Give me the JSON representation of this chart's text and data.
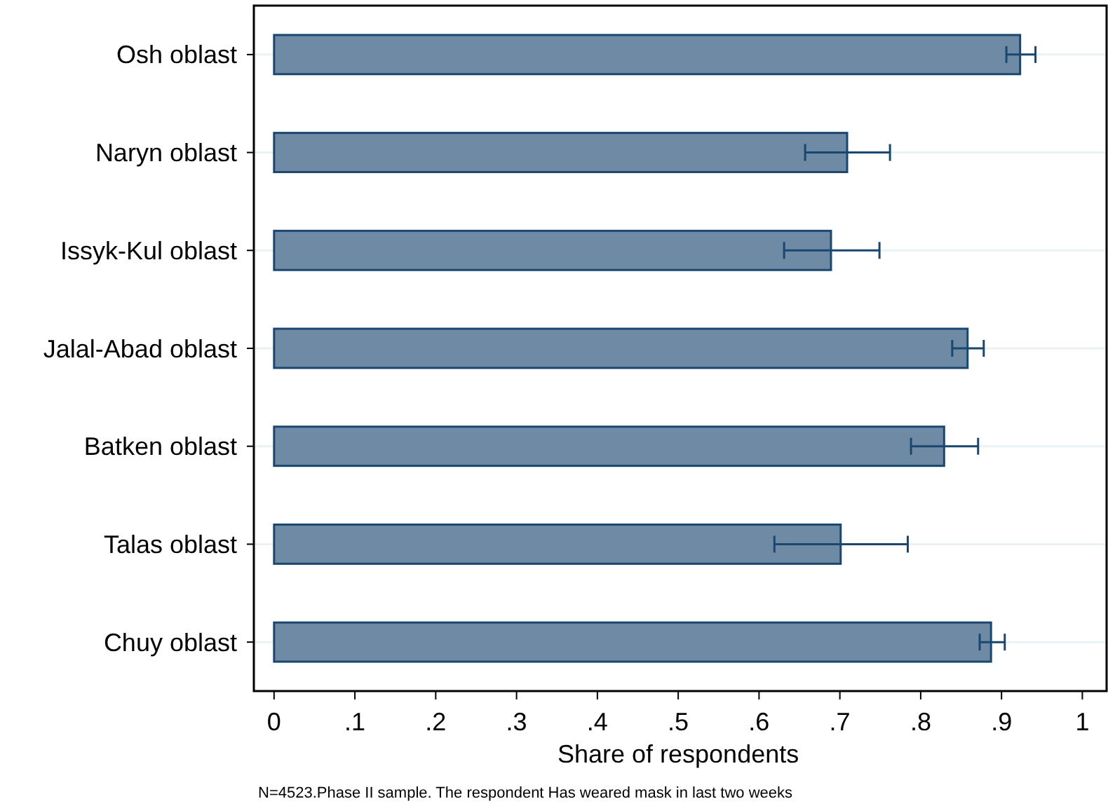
{
  "chart_data": {
    "type": "bar",
    "orientation": "horizontal",
    "xlabel": "Share of respondents",
    "categories": [
      "Osh oblast",
      "Naryn oblast",
      "Issyk-Kul oblast",
      "Jalal-Abad oblast",
      "Batken oblast",
      "Talas oblast",
      "Chuy oblast"
    ],
    "values": [
      0.923,
      0.709,
      0.689,
      0.858,
      0.829,
      0.701,
      0.887
    ],
    "errors": [
      [
        0.906,
        0.942
      ],
      [
        0.657,
        0.762
      ],
      [
        0.631,
        0.749
      ],
      [
        0.839,
        0.878
      ],
      [
        0.788,
        0.871
      ],
      [
        0.619,
        0.784
      ],
      [
        0.873,
        0.904
      ]
    ],
    "color": "#6e8aa5",
    "xlim": [
      -0.025,
      1.03
    ],
    "xticks": [
      0,
      {
        "value": 0.1,
        "label": ".1"
      },
      {
        "value": 0.2,
        "label": ".2"
      },
      {
        "value": 0.3,
        "label": ".3"
      },
      {
        "value": 0.4,
        "label": ".4"
      },
      {
        "value": 0.5,
        "label": ".5"
      },
      {
        "value": 0.6,
        "label": ".6"
      },
      {
        "value": 0.7,
        "label": ".7"
      },
      {
        "value": 0.8,
        "label": ".8"
      },
      {
        "value": 0.9,
        "label": ".9"
      },
      1
    ],
    "grid": "y",
    "annotations": [
      "N=4523.Phase II sample. The respondent Has weared mask in last two weeks"
    ]
  }
}
